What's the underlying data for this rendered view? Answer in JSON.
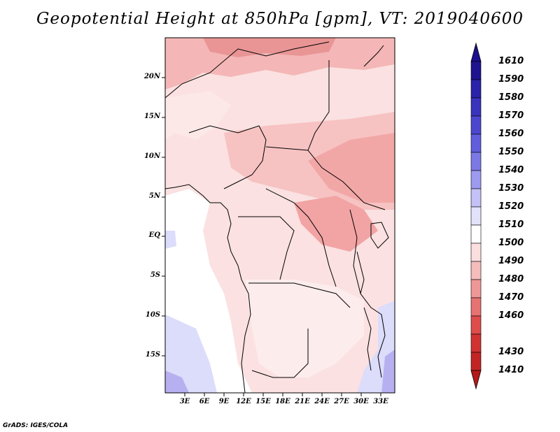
{
  "title": "Geopotential Height at 850hPa [gpm], VT: 2019040600",
  "footer": "GrADS: IGES/COLA",
  "map": {
    "lat_labels": [
      "20N",
      "15N",
      "10N",
      "5N",
      "EQ",
      "5S",
      "10S",
      "15S"
    ],
    "lon_labels": [
      "3E",
      "6E",
      "9E",
      "12E",
      "15E",
      "18E",
      "21E",
      "24E",
      "27E",
      "30E",
      "33E"
    ]
  },
  "colorbar": {
    "labels": [
      "1610",
      "1590",
      "1580",
      "1570",
      "1560",
      "1550",
      "1540",
      "1530",
      "1520",
      "1510",
      "1500",
      "1490",
      "1480",
      "1470",
      "1460",
      "1430",
      "1410"
    ],
    "colors": {
      "blue_top": "#1a0f8c",
      "white": "#ffffff",
      "red_bottom": "#b51a1a"
    }
  }
}
